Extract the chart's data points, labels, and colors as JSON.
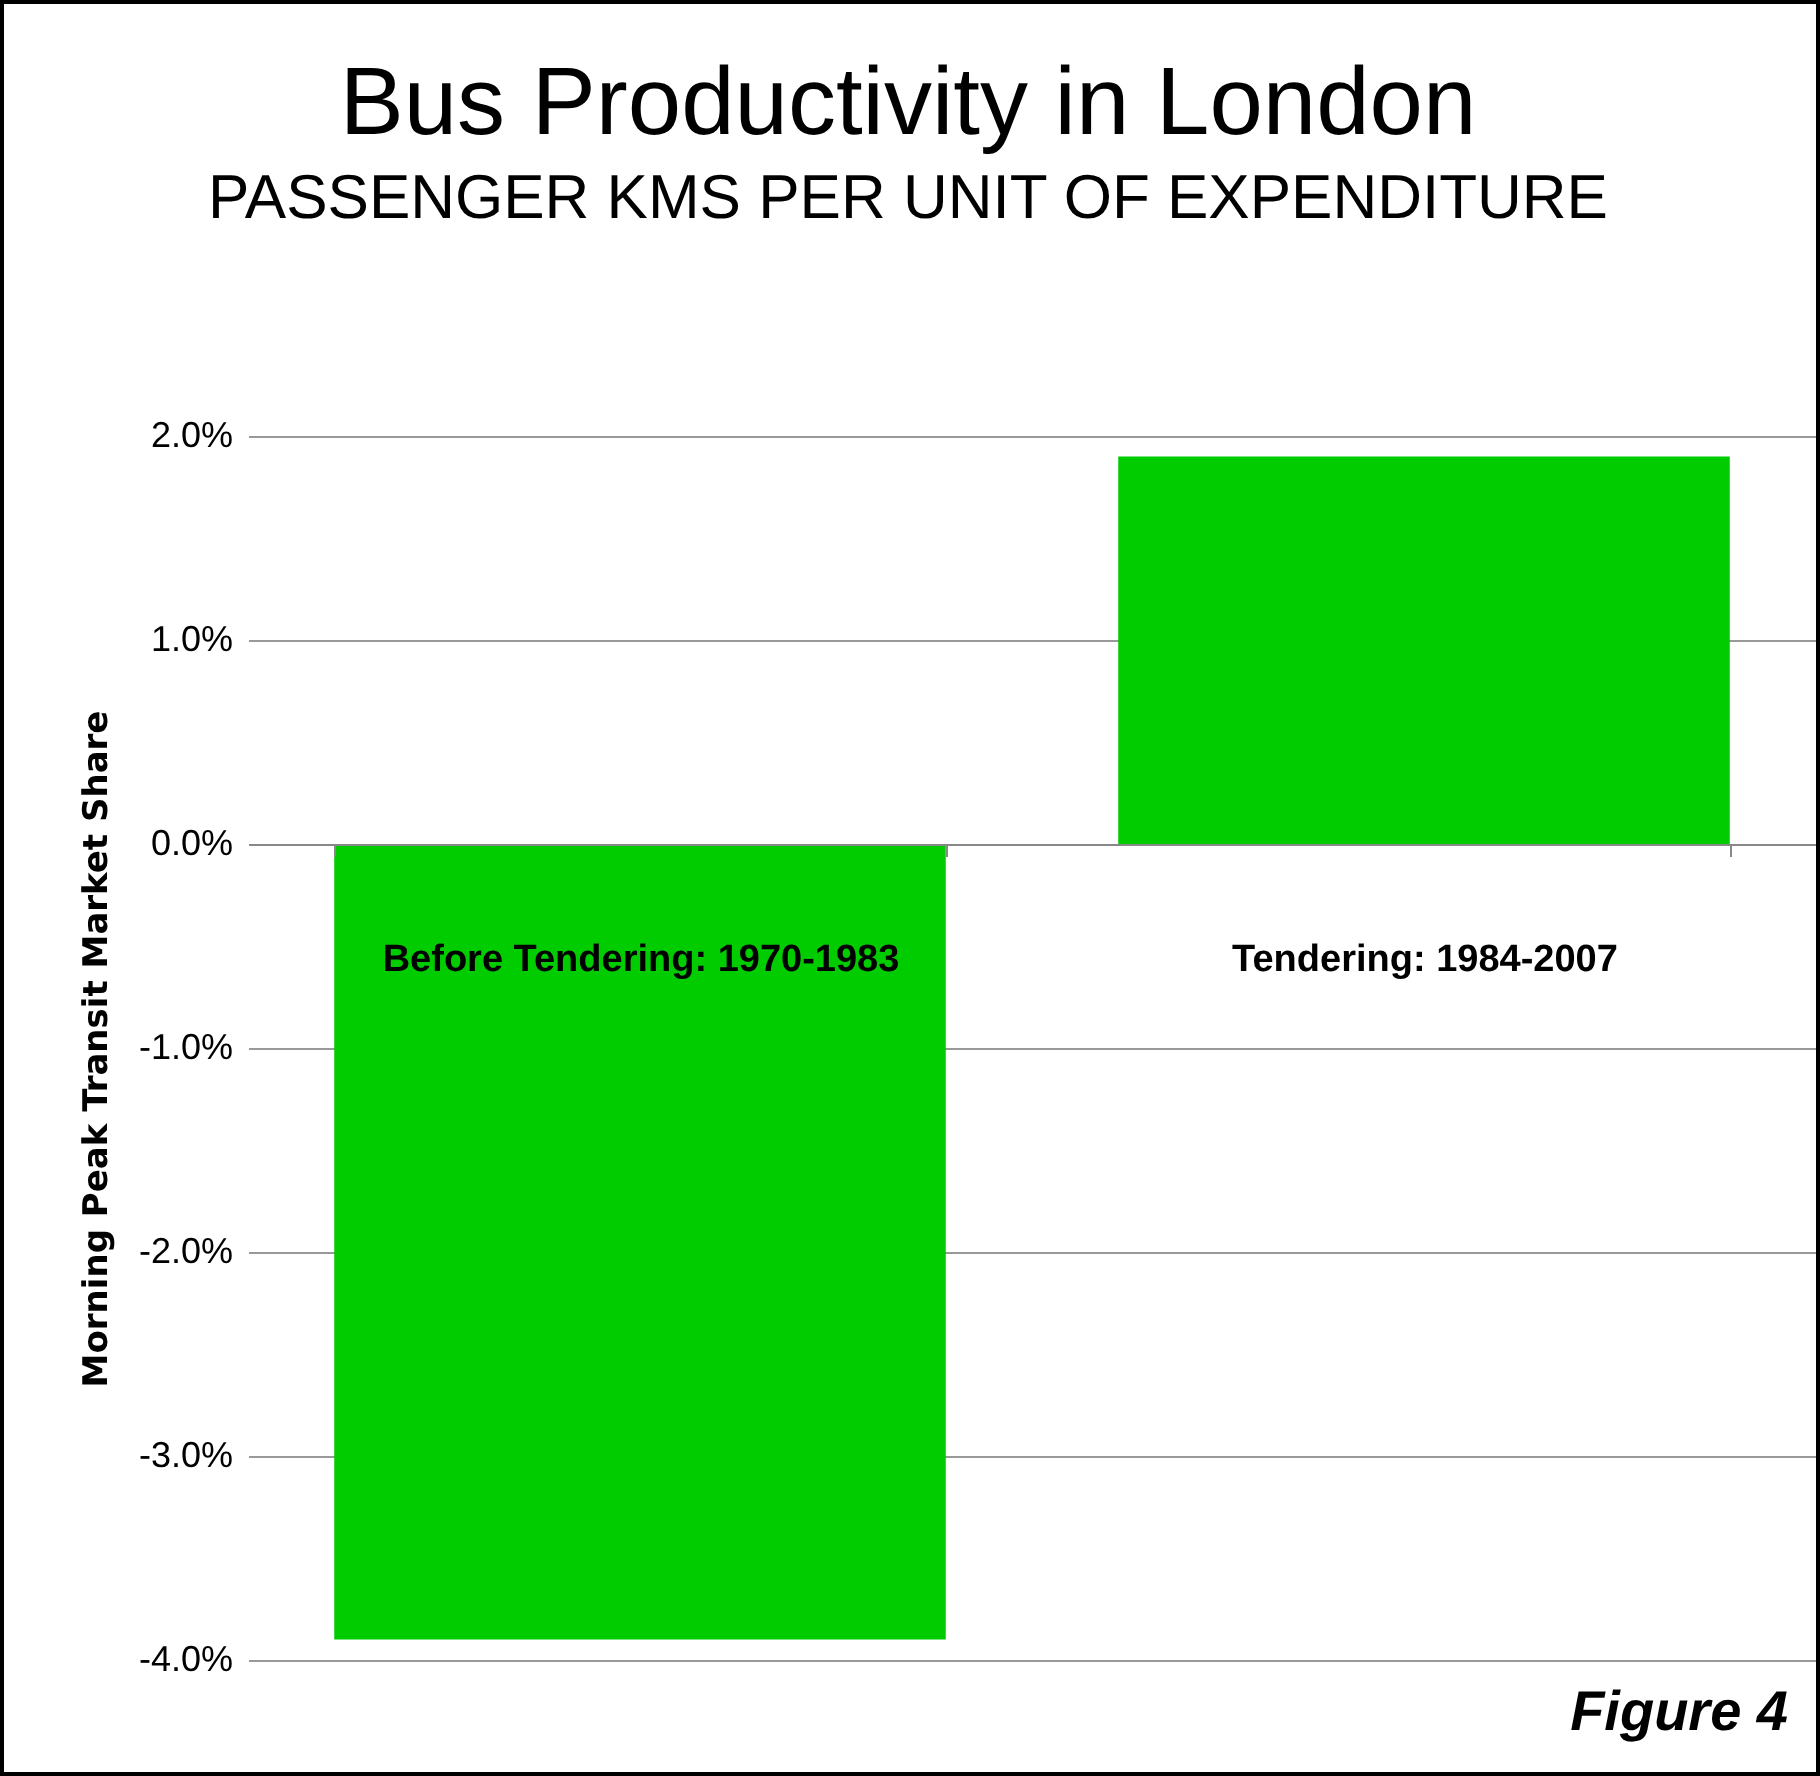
{
  "chart_data": {
    "type": "bar",
    "title": "Bus Productivity in London",
    "subtitle": "PASSENGER KMS PER UNIT OF EXPENDITURE",
    "ylabel": "Morning Peak Transit Market Share",
    "categories": [
      "Before Tendering: 1970-1983",
      "Tendering: 1984-2007"
    ],
    "values": [
      -3.9,
      1.9
    ],
    "color": "#00cc00",
    "ylim": [
      -4,
      2
    ],
    "yticks": [
      {
        "value": -4,
        "label": "-4.0%"
      },
      {
        "value": -3,
        "label": "-3.0%"
      },
      {
        "value": -2,
        "label": "-2.0%"
      },
      {
        "value": -1,
        "label": "-1.0%"
      },
      {
        "value": 0,
        "label": "0.0%"
      },
      {
        "value": 1,
        "label": "1.0%"
      },
      {
        "value": 2,
        "label": "2.0%"
      }
    ],
    "grid": "y",
    "annotations": [
      "Figure 4"
    ]
  }
}
